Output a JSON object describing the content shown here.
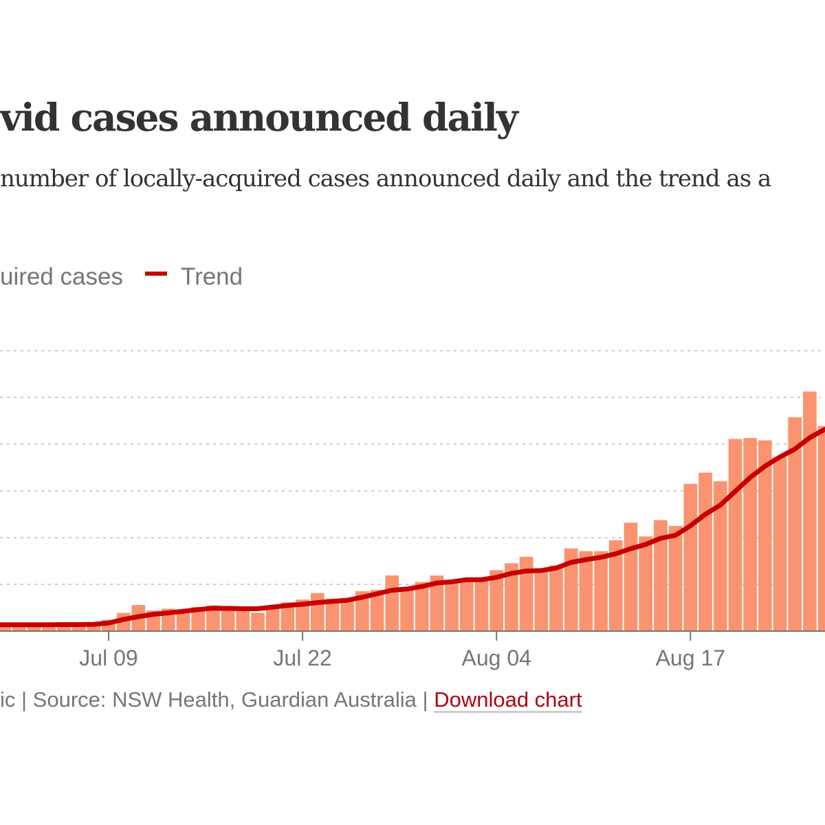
{
  "title": "vid cases announced daily",
  "subtitle": "number of locally-acquired cases announced daily and the trend as a",
  "legend": {
    "bars_label": "uired cases",
    "trend_label": "Trend"
  },
  "footer": {
    "text": "ic | Source: NSW Health, Guardian Australia | ",
    "download_label": "Download chart"
  },
  "colors": {
    "bars": "#fb9370",
    "trend": "#c70000",
    "grid": "#cccccc",
    "axis": "#767676"
  },
  "chart_data": {
    "type": "bar",
    "start_date": "2021-07-02",
    "x_tick_labels": [
      "Jul 09",
      "Jul 22",
      "Aug 04",
      "Aug 17"
    ],
    "x_tick_dates": [
      "2021-07-09",
      "2021-07-22",
      "2021-08-04",
      "2021-08-17"
    ],
    "ylim": [
      0,
      1200
    ],
    "y_gridlines": [
      200,
      400,
      600,
      800,
      1000,
      1200
    ],
    "grid": true,
    "series": [
      {
        "name": "uired cases",
        "type": "bar",
        "values": [
          34,
          20,
          20,
          22,
          24,
          26,
          28,
          48,
          78,
          112,
          88,
          96,
          88,
          103,
          110,
          108,
          103,
          78,
          98,
          123,
          135,
          163,
          139,
          142,
          171,
          176,
          238,
          181,
          210,
          238,
          214,
          214,
          230,
          261,
          290,
          318,
          260,
          281,
          354,
          342,
          342,
          389,
          464,
          405,
          475,
          450,
          630,
          678,
          641,
          822,
          826,
          816,
          745,
          915,
          1025,
          877
        ]
      },
      {
        "name": "Trend",
        "type": "line",
        "values": [
          27,
          27,
          27,
          27,
          28,
          28,
          29,
          35,
          50,
          62,
          72,
          78,
          85,
          92,
          98,
          97,
          96,
          96,
          103,
          110,
          115,
          122,
          127,
          132,
          145,
          160,
          175,
          180,
          191,
          206,
          211,
          220,
          220,
          230,
          247,
          257,
          259,
          270,
          294,
          306,
          316,
          331,
          353,
          371,
          397,
          410,
          451,
          500,
          539,
          598,
          657,
          706,
          745,
          779,
          828,
          863
        ]
      }
    ]
  }
}
